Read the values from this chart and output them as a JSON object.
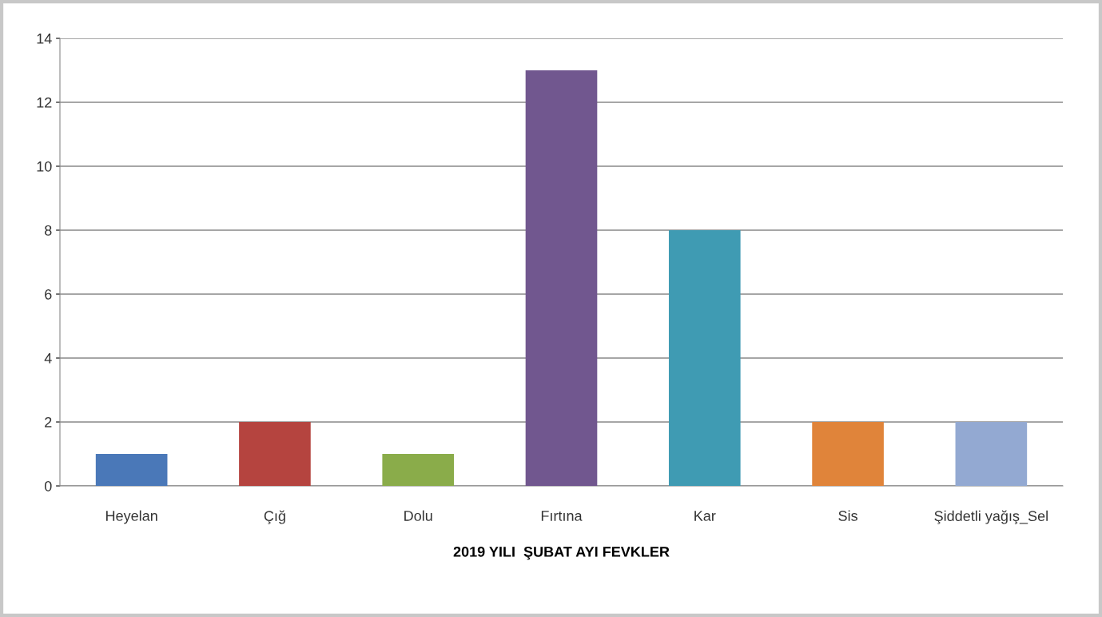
{
  "chart_data": {
    "type": "bar",
    "xlabel": "2019 YILI  ŞUBAT AYI FEVKLER",
    "categories": [
      "Heyelan",
      "Çığ",
      "Dolu",
      "Fırtına",
      "Kar",
      "Sis",
      "Şiddetli yağış_Sel"
    ],
    "values": [
      1,
      2,
      1,
      13,
      8,
      2,
      2
    ],
    "colors": [
      "#4a78b8",
      "#b5443f",
      "#8aac4a",
      "#71578f",
      "#3f9bb3",
      "#e0843a",
      "#93a9d2"
    ],
    "ylim": [
      0,
      14
    ],
    "yticks": [
      0,
      2,
      4,
      6,
      8,
      10,
      12,
      14
    ],
    "grid": "y",
    "legend": false
  }
}
